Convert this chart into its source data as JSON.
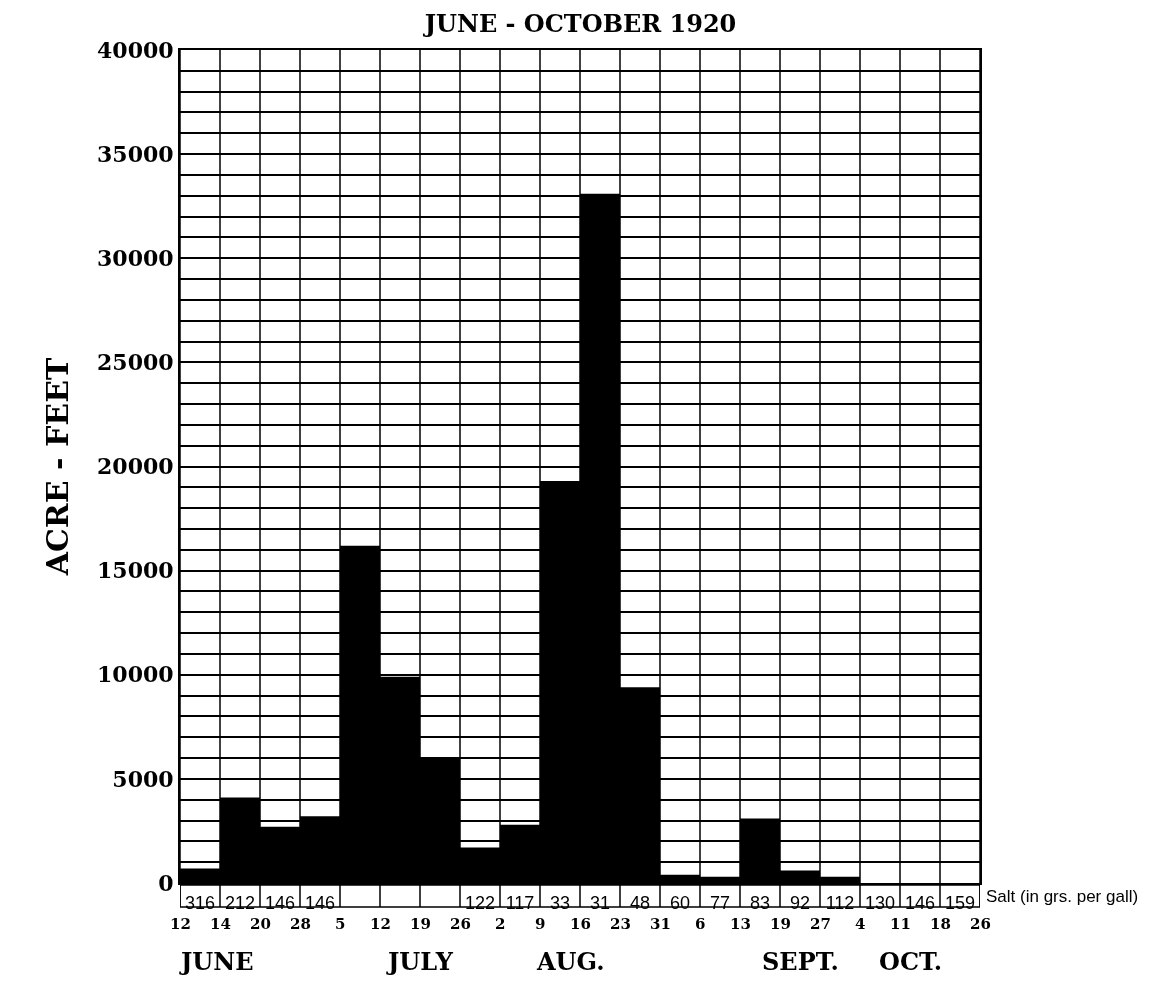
{
  "chart_data": {
    "type": "bar",
    "title": "JUNE - OCTOBER 1920",
    "ylabel": "ACRE - FEET",
    "categories": [
      "316",
      "212",
      "146",
      "146",
      null,
      null,
      null,
      "122",
      "117",
      "33",
      "31",
      "48",
      "60",
      "77",
      "83",
      "92",
      "112",
      "130",
      "146",
      "159"
    ],
    "values": [
      700,
      4100,
      2700,
      3200,
      16200,
      9900,
      6000,
      1700,
      2800,
      19300,
      33100,
      9400,
      400,
      300,
      3100,
      600,
      300,
      0,
      0,
      0
    ],
    "color": "#000000",
    "ylim": [
      0,
      40000
    ],
    "yticks": [
      0,
      {
        "value": 1000,
        "label": null
      },
      {
        "value": 2000,
        "label": null
      },
      {
        "value": 3000,
        "label": null
      },
      {
        "value": 4000,
        "label": null
      },
      5000,
      {
        "value": 6000,
        "label": null
      },
      {
        "value": 7000,
        "label": null
      },
      {
        "value": 8000,
        "label": null
      },
      {
        "value": 9000,
        "label": null
      },
      10000,
      {
        "value": 11000,
        "label": null
      },
      {
        "value": 12000,
        "label": null
      },
      {
        "value": 13000,
        "label": null
      },
      {
        "value": 14000,
        "label": null
      },
      15000,
      {
        "value": 16000,
        "label": null
      },
      {
        "value": 17000,
        "label": null
      },
      {
        "value": 18000,
        "label": null
      },
      {
        "value": 19000,
        "label": null
      },
      20000,
      {
        "value": 21000,
        "label": null
      },
      {
        "value": 22000,
        "label": null
      },
      {
        "value": 23000,
        "label": null
      },
      {
        "value": 24000,
        "label": null
      },
      25000,
      {
        "value": 26000,
        "label": null
      },
      {
        "value": 27000,
        "label": null
      },
      {
        "value": 28000,
        "label": null
      },
      {
        "value": 29000,
        "label": null
      },
      30000,
      {
        "value": 31000,
        "label": null
      },
      {
        "value": 32000,
        "label": null
      },
      {
        "value": 33000,
        "label": null
      },
      {
        "value": 34000,
        "label": null
      },
      35000,
      {
        "value": 36000,
        "label": null
      },
      {
        "value": 37000,
        "label": null
      },
      {
        "value": 38000,
        "label": null
      },
      {
        "value": 39000,
        "label": null
      },
      40000
    ],
    "grid": true,
    "annotations": [
      "12",
      "14",
      "20",
      "28",
      "5",
      "12",
      "19",
      "26",
      "2",
      "9",
      "16",
      "23",
      "31",
      "6",
      "13",
      "19",
      "27",
      "4",
      "11",
      "18",
      "26",
      "JUNE",
      "JULY",
      "AUG.",
      "SEPT.",
      "OCT.",
      "Salt (in grs. per gall)"
    ]
  }
}
